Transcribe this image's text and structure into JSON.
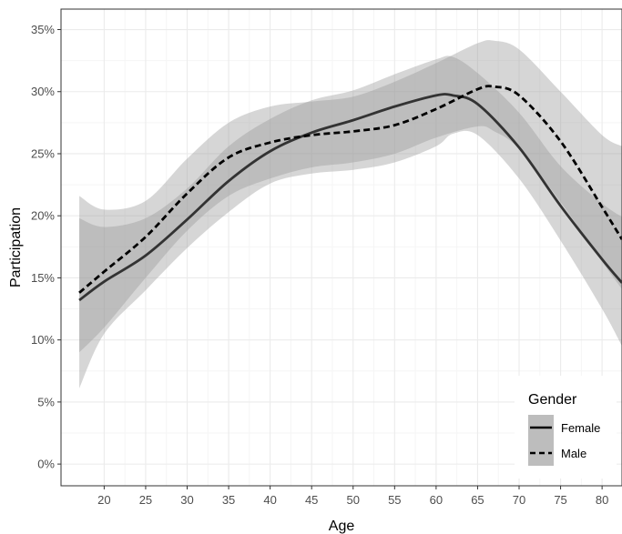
{
  "chart_data": {
    "type": "line",
    "xlabel": "Age",
    "ylabel": "Participation",
    "xlim": [
      14.8,
      82.4
    ],
    "ylim": [
      -0.0175,
      0.3665
    ],
    "x_ticks": [
      20,
      25,
      30,
      35,
      40,
      45,
      50,
      55,
      60,
      65,
      70,
      75,
      80
    ],
    "x_tick_labels": [
      "20",
      "25",
      "30",
      "35",
      "40",
      "45",
      "50",
      "55",
      "60",
      "65",
      "70",
      "75",
      "80"
    ],
    "y_ticks": [
      0,
      0.05,
      0.1,
      0.15,
      0.2,
      0.25,
      0.3,
      0.35
    ],
    "y_tick_labels": [
      "0%",
      "5%",
      "10%",
      "15%",
      "20%",
      "25%",
      "30%",
      "35%"
    ],
    "grid": true,
    "legend": {
      "title": "Gender",
      "placement": "bottom-right",
      "entries": [
        "Female",
        "Male"
      ]
    },
    "series": [
      {
        "name": "Female",
        "line_style": "solid",
        "color": "#333333",
        "x": [
          17,
          20,
          25,
          30,
          35,
          40,
          45,
          50,
          55,
          60,
          62,
          65,
          70,
          75,
          80,
          82.4
        ],
        "y": [
          0.132,
          0.147,
          0.168,
          0.197,
          0.228,
          0.252,
          0.267,
          0.277,
          0.288,
          0.297,
          0.297,
          0.29,
          0.255,
          0.208,
          0.165,
          0.146
        ],
        "ci_lower": [
          0.061,
          0.105,
          0.14,
          0.174,
          0.203,
          0.226,
          0.234,
          0.237,
          0.243,
          0.256,
          0.266,
          0.265,
          0.23,
          0.18,
          0.125,
          0.095
        ],
        "ci_upper": [
          0.198,
          0.191,
          0.198,
          0.222,
          0.256,
          0.278,
          0.293,
          0.301,
          0.314,
          0.326,
          0.328,
          0.315,
          0.283,
          0.24,
          0.21,
          0.199
        ]
      },
      {
        "name": "Male",
        "line_style": "dashed",
        "color": "#000000",
        "x": [
          17,
          20,
          25,
          30,
          35,
          40,
          45,
          50,
          55,
          60,
          65,
          67,
          70,
          75,
          80,
          82.4
        ],
        "y": [
          0.138,
          0.155,
          0.183,
          0.218,
          0.247,
          0.259,
          0.265,
          0.268,
          0.273,
          0.286,
          0.302,
          0.304,
          0.297,
          0.26,
          0.207,
          0.181
        ],
        "ci_lower": [
          0.09,
          0.11,
          0.15,
          0.188,
          0.216,
          0.23,
          0.239,
          0.243,
          0.25,
          0.263,
          0.272,
          0.268,
          0.254,
          0.211,
          0.163,
          0.141
        ],
        "ci_upper": [
          0.216,
          0.205,
          0.212,
          0.246,
          0.275,
          0.288,
          0.292,
          0.296,
          0.308,
          0.323,
          0.339,
          0.341,
          0.334,
          0.3,
          0.265,
          0.256
        ]
      }
    ],
    "colors": {
      "panel_background": "#ffffff",
      "panel_border": "#333333",
      "grid_major": "#ebebeb",
      "grid_minor": "#f5f5f5",
      "ribbon_fill": "#999999",
      "legend_key_fill": "#bdbdbd"
    }
  }
}
